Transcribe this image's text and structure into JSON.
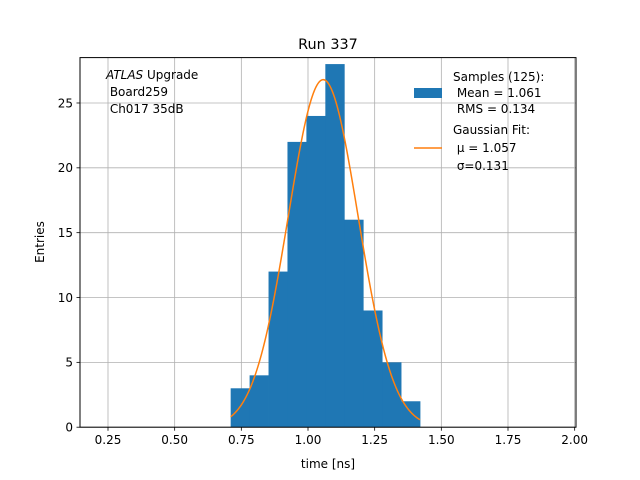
{
  "chart_data": {
    "type": "bar",
    "title": "Run 337",
    "xlabel": "time [ns]",
    "ylabel": "Entries",
    "xlim": [
      0.145,
      2.005
    ],
    "ylim": [
      0,
      28.5
    ],
    "grid": true,
    "xticks": [
      0.25,
      0.5,
      0.75,
      1.0,
      1.25,
      1.5,
      1.75,
      2.0
    ],
    "xtick_labels": [
      "0.25",
      "0.50",
      "0.75",
      "1.00",
      "1.25",
      "1.50",
      "1.75",
      "2.00"
    ],
    "yticks": [
      0,
      5,
      10,
      15,
      20,
      25
    ],
    "ytick_labels": [
      "0",
      "5",
      "10",
      "15",
      "20",
      "25"
    ],
    "histogram": {
      "bin_edges": [
        0.71,
        0.781,
        0.852,
        0.923,
        0.994,
        1.065,
        1.136,
        1.207,
        1.278,
        1.349,
        1.42
      ],
      "counts": [
        3,
        4,
        12,
        22,
        24,
        28,
        16,
        9,
        5,
        2
      ],
      "color": "#1f77b4"
    },
    "fit": {
      "type": "gaussian",
      "amplitude": 26.8,
      "mu": 1.057,
      "sigma": 0.131,
      "x_range": [
        0.71,
        1.42
      ],
      "color": "#ff7f0e"
    },
    "annotation": {
      "line1_italic": "ATLAS",
      "line1_rest": " Upgrade",
      "line2": " Board259",
      "line3": " Ch017 35dB"
    },
    "legend": {
      "placement": "upper-right",
      "samples_lines": [
        "Samples (125):",
        " Mean = 1.061",
        " RMS = 0.134"
      ],
      "fit_lines": [
        "Gaussian Fit:",
        " μ = 1.057",
        " σ=0.131"
      ]
    }
  }
}
